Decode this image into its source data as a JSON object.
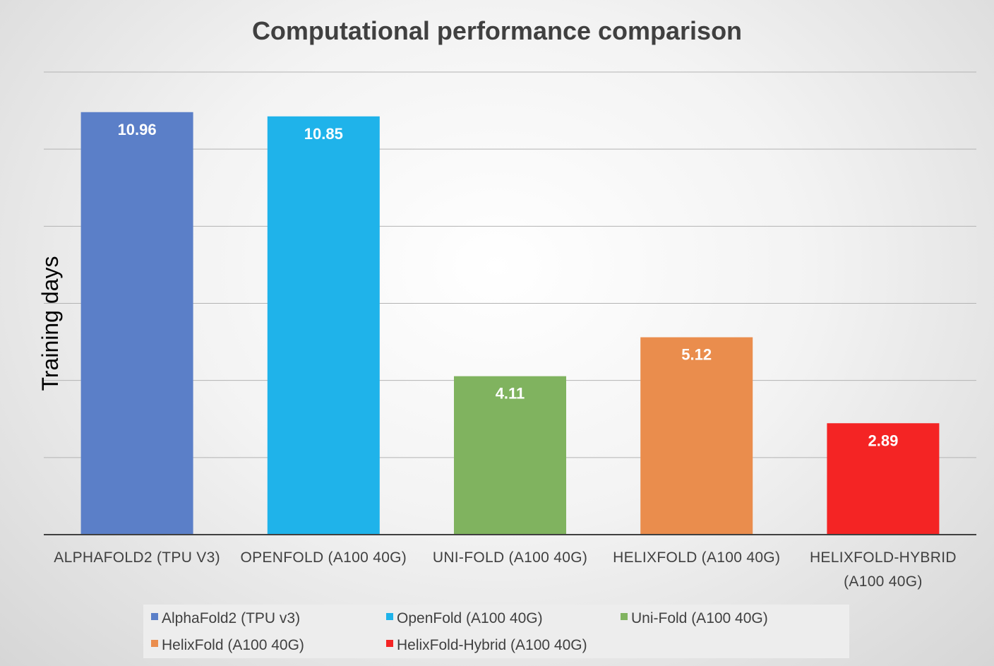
{
  "chart_data": {
    "type": "bar",
    "title": "Computational performance comparison",
    "ylabel": "Training days",
    "xlabel": "",
    "ylim": [
      0,
      12
    ],
    "grid": true,
    "legend_position": "bottom",
    "categories": [
      [
        "ALPHAFOLD2 (TPU V3)"
      ],
      [
        "OPENFOLD (A100 40G)"
      ],
      [
        "UNI-FOLD (A100 40G)"
      ],
      [
        "HELIXFOLD (A100 40G)"
      ],
      [
        "HELIXFOLD-HYBRID",
        "(A100 40G)"
      ]
    ],
    "values": [
      10.96,
      10.85,
      4.11,
      5.12,
      2.89
    ],
    "data_labels": [
      "10.96",
      "10.85",
      "4.11",
      "5.12",
      "2.89"
    ],
    "legend": [
      "AlphaFold2 (TPU v3)",
      "OpenFold (A100 40G)",
      "Uni-Fold (A100 40G)",
      "HelixFold (A100 40G)",
      "HelixFold-Hybrid (A100 40G)"
    ],
    "colors": [
      "#5b7fc8",
      "#1fb3ea",
      "#80b35f",
      "#ea8d4d",
      "#f42424"
    ]
  }
}
